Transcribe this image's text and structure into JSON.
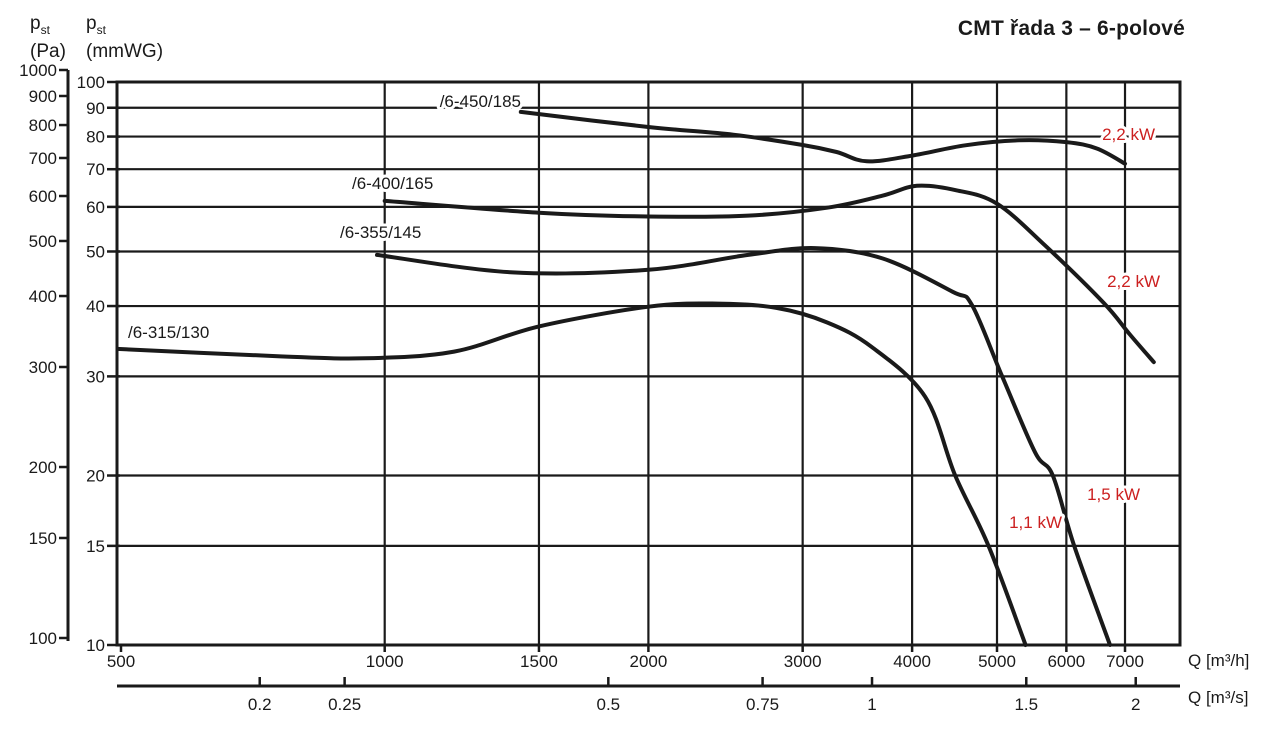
{
  "title": "CMT řada 3 – 6-polové",
  "axis_headers": {
    "pa": {
      "symbol": "p",
      "sub": "st",
      "unit": "(Pa)"
    },
    "mmwg": {
      "symbol": "p",
      "sub": "st",
      "unit": "(mmWG)"
    }
  },
  "chart_data": {
    "type": "line",
    "title": "CMT řada 3 – 6-polové",
    "grid": true,
    "units": {
      "x": "m³/h",
      "y": "mmWG"
    },
    "x_axis": {
      "label": "Q [m³/h]",
      "scale": "log",
      "range": [
        500,
        8000
      ],
      "ticks": [
        500,
        1000,
        1500,
        2000,
        3000,
        4000,
        5000,
        6000,
        7000
      ]
    },
    "x_axis_secondary": {
      "label": "Q [m³/s]",
      "scale": "log",
      "ticks": [
        0.2,
        0.25,
        0.5,
        0.75,
        1,
        1.5,
        2
      ]
    },
    "y_axis": {
      "label": "pst (mmWG)",
      "scale": "log",
      "range": [
        10,
        100
      ],
      "ticks": [
        100,
        90,
        80,
        70,
        60,
        50,
        40,
        30,
        20,
        15,
        10
      ]
    },
    "y_axis_secondary": {
      "label": "pst (Pa)",
      "scale": "log",
      "range": [
        100,
        1000
      ],
      "ticks": [
        1000,
        900,
        800,
        700,
        600,
        500,
        400,
        300,
        200,
        150,
        100
      ]
    },
    "series": [
      {
        "name": "/6-450/185",
        "label_pos": [
          521,
          107
        ],
        "label_anchor": "end",
        "points": [
          [
            1430,
            88.5
          ],
          [
            2000,
            83.2
          ],
          [
            2500,
            80.6
          ],
          [
            3000,
            77.3
          ],
          [
            3280,
            75.1
          ],
          [
            3550,
            72.3
          ],
          [
            4000,
            74.0
          ],
          [
            4600,
            77.2
          ],
          [
            5300,
            78.8
          ],
          [
            6000,
            78.2
          ],
          [
            6500,
            76.2
          ],
          [
            7000,
            71.6
          ]
        ]
      },
      {
        "name": "/6-400/165",
        "label_pos": [
          352,
          189
        ],
        "label_anchor": "start",
        "points": [
          [
            1000,
            61.5
          ],
          [
            1500,
            58.6
          ],
          [
            2000,
            57.7
          ],
          [
            2600,
            57.9
          ],
          [
            3200,
            59.8
          ],
          [
            3700,
            62.8
          ],
          [
            4050,
            65.4
          ],
          [
            4500,
            64.2
          ],
          [
            5000,
            60.8
          ],
          [
            5670,
            51.3
          ],
          [
            6620,
            40.5
          ],
          [
            7090,
            35.6
          ],
          [
            7550,
            31.8
          ]
        ]
      },
      {
        "name": "/6-355/145",
        "label_pos": [
          340,
          238
        ],
        "label_anchor": "start",
        "points": [
          [
            980,
            49.3
          ],
          [
            1400,
            45.9
          ],
          [
            2000,
            46.4
          ],
          [
            2600,
            49.3
          ],
          [
            3100,
            50.7
          ],
          [
            3700,
            48.6
          ],
          [
            4450,
            42.4
          ],
          [
            4680,
            40.2
          ],
          [
            5060,
            30.2
          ],
          [
            5525,
            22
          ],
          [
            5790,
            20
          ],
          [
            6125,
            15
          ],
          [
            6730,
            10
          ]
        ]
      },
      {
        "name": "/6-315/130",
        "label_pos": [
          128,
          338
        ],
        "label_anchor": "start",
        "points": [
          [
            490,
            33.6
          ],
          [
            750,
            32.6
          ],
          [
            950,
            32.3
          ],
          [
            1200,
            33.2
          ],
          [
            1500,
            36.8
          ],
          [
            2000,
            39.9
          ],
          [
            2400,
            40.4
          ],
          [
            2800,
            39.7
          ],
          [
            3200,
            37.4
          ],
          [
            3600,
            33.8
          ],
          [
            4140,
            27.6
          ],
          [
            4480,
            20
          ],
          [
            4890,
            15
          ],
          [
            5390,
            10
          ]
        ]
      }
    ],
    "annotations": [
      {
        "text": "2,2 kW",
        "pos": [
          1155,
          140
        ],
        "anchor": "end",
        "color": "#cc2020"
      },
      {
        "text": "2,2 kW",
        "pos": [
          1160,
          287
        ],
        "anchor": "end",
        "color": "#cc2020"
      },
      {
        "text": "1,5 kW",
        "pos": [
          1140,
          500
        ],
        "anchor": "end",
        "color": "#cc2020"
      },
      {
        "text": "1,1 kW",
        "pos": [
          1062,
          528
        ],
        "anchor": "end",
        "color": "#cc2020"
      }
    ],
    "colors": {
      "curve": "#1a1a1a",
      "grid": "#1a1a1a",
      "annotation": "#cc2020",
      "background": "#ffffff"
    }
  }
}
